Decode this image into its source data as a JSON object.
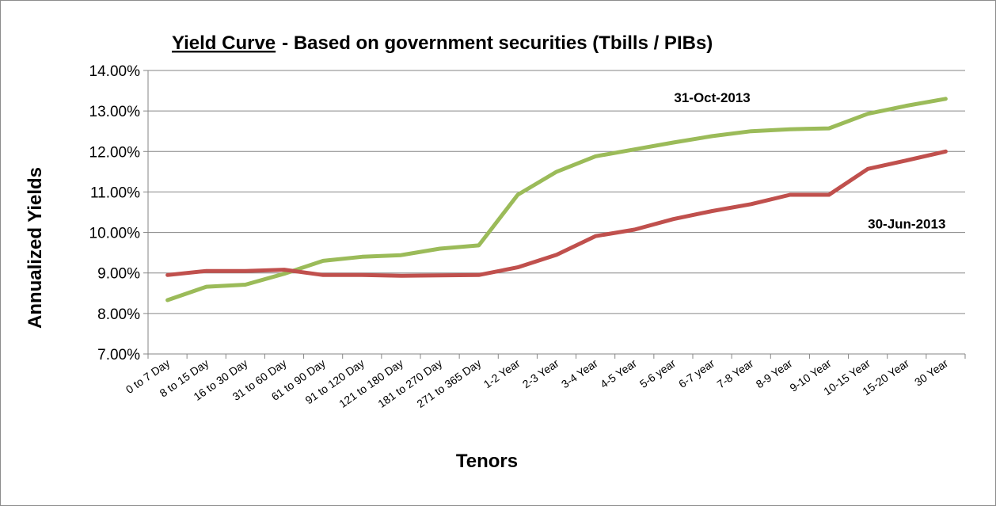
{
  "chart_data": {
    "type": "line",
    "title_main": "Yield Curve",
    "title_rest": "-  Based on government securities (Tbills / PIBs)",
    "xlabel": "Tenors",
    "ylabel": "Annualized Yields",
    "ylim": [
      7,
      14
    ],
    "ytick_labels": [
      "7.00%",
      "8.00%",
      "9.00%",
      "10.00%",
      "11.00%",
      "12.00%",
      "13.00%",
      "14.00%"
    ],
    "grid": true,
    "categories": [
      "0 to 7 Day",
      "8 to 15 Day",
      "16 to 30 Day",
      "31 to 60 Day",
      "61 to 90 Day",
      "91 to 120 Day",
      "121 to 180 Day",
      "181 to 270 Day",
      "271 to 365 Day",
      "1-2 Year",
      "2-3 Year",
      "3-4 Year",
      "4-5 Year",
      "5-6 year",
      "6-7 year",
      "7-8 Year",
      "8-9 Year",
      "9-10 Year",
      "10-15 Year",
      "15-20 Year",
      "30 Year"
    ],
    "series": [
      {
        "name": "31-Oct-2013",
        "color": "#9bbb59",
        "values": [
          8.33,
          8.66,
          8.71,
          8.98,
          9.3,
          9.4,
          9.44,
          9.6,
          9.68,
          10.93,
          11.5,
          11.88,
          12.05,
          12.22,
          12.38,
          12.5,
          12.55,
          12.57,
          12.93,
          13.13,
          13.3
        ]
      },
      {
        "name": "30-Jun-2013",
        "color": "#c0504d",
        "values": [
          8.95,
          9.05,
          9.05,
          9.08,
          8.95,
          8.95,
          8.93,
          8.94,
          8.95,
          9.14,
          9.45,
          9.91,
          10.07,
          10.33,
          10.53,
          10.7,
          10.93,
          10.93,
          11.57,
          11.78,
          12.0
        ]
      }
    ]
  }
}
